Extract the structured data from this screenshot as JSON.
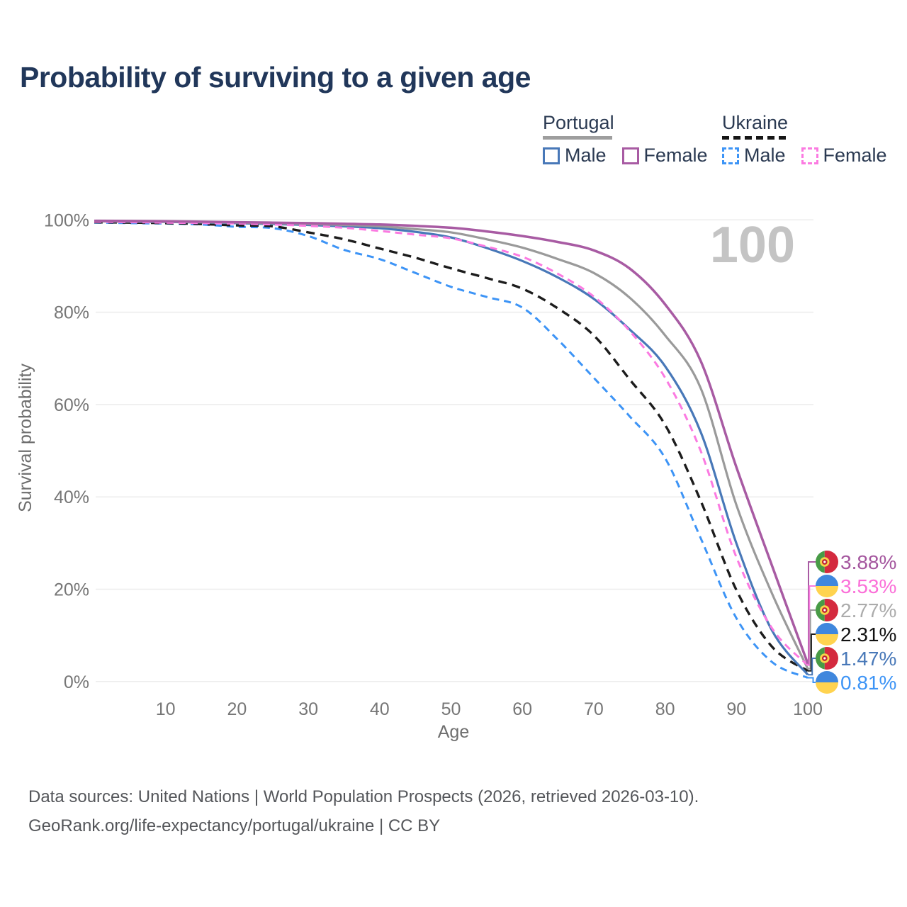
{
  "title": "Probability of surviving to a given age",
  "watermark": "100",
  "legend": {
    "groups": [
      {
        "name": "Portugal",
        "underline_style": "border-top:5px solid #9e9e9e;width:98px",
        "items": [
          {
            "label": "Male",
            "swatch_style": "border:3px solid #4878b8"
          },
          {
            "label": "Female",
            "swatch_style": "border:3px solid #a85ba3"
          }
        ]
      },
      {
        "name": "Ukraine",
        "underline_style": "border-top:5px dashed #161616;width:90px",
        "items": [
          {
            "label": "Male",
            "swatch_style": "border:3px dashed #3d94f6"
          },
          {
            "label": "Female",
            "swatch_style": "border:3px dashed #fb7ae1"
          }
        ]
      }
    ]
  },
  "chart_data": {
    "type": "line",
    "title": "Probability of surviving to a given age",
    "xlabel": "Age",
    "ylabel": "Survival probability",
    "xlim": [
      0,
      100
    ],
    "ylim": [
      0,
      100
    ],
    "grid": "horizontal",
    "x_ticks": [
      10,
      20,
      30,
      40,
      50,
      60,
      70,
      80,
      90,
      100
    ],
    "y_ticks": [
      0,
      20,
      40,
      60,
      80,
      100
    ],
    "y_tick_suffix": "%",
    "series": [
      {
        "name": "Portugal Female",
        "country": "Portugal",
        "sex": "Female",
        "color": "#a85ba3",
        "dashed": false,
        "width": 3.5,
        "z": 6,
        "flag": "pt",
        "end_label": "3.88%",
        "label_color": "#a4569e",
        "points": [
          [
            0,
            99.8
          ],
          [
            5,
            99.75
          ],
          [
            10,
            99.7
          ],
          [
            15,
            99.6
          ],
          [
            20,
            99.5
          ],
          [
            25,
            99.4
          ],
          [
            30,
            99.3
          ],
          [
            35,
            99.15
          ],
          [
            40,
            99.0
          ],
          [
            45,
            98.7
          ],
          [
            50,
            98.3
          ],
          [
            55,
            97.5
          ],
          [
            60,
            96.5
          ],
          [
            65,
            95.2
          ],
          [
            70,
            93.4
          ],
          [
            75,
            89.5
          ],
          [
            80,
            81.7
          ],
          [
            85,
            69.4
          ],
          [
            90,
            46.4
          ],
          [
            95,
            25.0
          ],
          [
            100,
            3.88
          ]
        ]
      },
      {
        "name": "Ukraine Female",
        "country": "Ukraine",
        "sex": "Female",
        "color": "#fb7ae1",
        "dashed": true,
        "dash": "10 7",
        "width": 3,
        "z": 5,
        "flag": "ua",
        "end_label": "3.53%",
        "label_color": "#fb6fd8",
        "points": [
          [
            0,
            99.6
          ],
          [
            5,
            99.5
          ],
          [
            10,
            99.4
          ],
          [
            15,
            99.3
          ],
          [
            20,
            99.2
          ],
          [
            25,
            99.0
          ],
          [
            30,
            98.7
          ],
          [
            35,
            98.3
          ],
          [
            40,
            97.6
          ],
          [
            45,
            96.8
          ],
          [
            50,
            96.0
          ],
          [
            55,
            94.2
          ],
          [
            60,
            92.0
          ],
          [
            65,
            88.3
          ],
          [
            70,
            83.4
          ],
          [
            75,
            76.0
          ],
          [
            80,
            65.8
          ],
          [
            85,
            49.9
          ],
          [
            90,
            26.9
          ],
          [
            95,
            11.5
          ],
          [
            100,
            3.53
          ]
        ]
      },
      {
        "name": "Portugal",
        "country": "Portugal",
        "sex": "Both",
        "color": "#9a9a9a",
        "dashed": false,
        "width": 3.2,
        "z": 4,
        "flag": "pt",
        "end_label": "2.77%",
        "label_color": "#ababab",
        "points": [
          [
            0,
            99.7
          ],
          [
            5,
            99.65
          ],
          [
            10,
            99.6
          ],
          [
            15,
            99.5
          ],
          [
            20,
            99.4
          ],
          [
            25,
            99.25
          ],
          [
            30,
            99.1
          ],
          [
            35,
            98.9
          ],
          [
            40,
            98.6
          ],
          [
            45,
            98.0
          ],
          [
            50,
            97.3
          ],
          [
            55,
            95.8
          ],
          [
            60,
            94.0
          ],
          [
            65,
            91.5
          ],
          [
            70,
            88.5
          ],
          [
            75,
            83.2
          ],
          [
            80,
            75.0
          ],
          [
            85,
            63.5
          ],
          [
            90,
            38.2
          ],
          [
            95,
            19.0
          ],
          [
            100,
            2.77
          ]
        ]
      },
      {
        "name": "Ukraine",
        "country": "Ukraine",
        "sex": "Both",
        "color": "#1c1c1c",
        "dashed": true,
        "dash": "12 8",
        "width": 3.4,
        "z": 2,
        "flag": "ua",
        "end_label": "2.31%",
        "label_color": "#111111",
        "points": [
          [
            0,
            99.5
          ],
          [
            5,
            99.4
          ],
          [
            10,
            99.3
          ],
          [
            15,
            99.1
          ],
          [
            20,
            98.8
          ],
          [
            25,
            98.6
          ],
          [
            30,
            97.3
          ],
          [
            35,
            95.8
          ],
          [
            40,
            93.8
          ],
          [
            45,
            91.8
          ],
          [
            50,
            89.5
          ],
          [
            55,
            87.4
          ],
          [
            60,
            85.1
          ],
          [
            65,
            80.8
          ],
          [
            70,
            75.0
          ],
          [
            75,
            65.5
          ],
          [
            80,
            55.6
          ],
          [
            85,
            39.1
          ],
          [
            90,
            19.8
          ],
          [
            95,
            7.5
          ],
          [
            100,
            2.31
          ]
        ]
      },
      {
        "name": "Portugal Male",
        "country": "Portugal",
        "sex": "Male",
        "color": "#4878b8",
        "dashed": false,
        "width": 3.2,
        "z": 3,
        "flag": "pt",
        "end_label": "1.47%",
        "label_color": "#4878b8",
        "points": [
          [
            0,
            99.7
          ],
          [
            5,
            99.6
          ],
          [
            10,
            99.55
          ],
          [
            15,
            99.45
          ],
          [
            20,
            99.3
          ],
          [
            25,
            99.1
          ],
          [
            30,
            98.9
          ],
          [
            35,
            98.6
          ],
          [
            40,
            98.2
          ],
          [
            45,
            97.4
          ],
          [
            50,
            96.2
          ],
          [
            55,
            93.9
          ],
          [
            60,
            91.1
          ],
          [
            65,
            87.5
          ],
          [
            70,
            82.9
          ],
          [
            75,
            76.3
          ],
          [
            80,
            68.3
          ],
          [
            85,
            54.0
          ],
          [
            90,
            29.9
          ],
          [
            95,
            11.0
          ],
          [
            100,
            1.47
          ]
        ]
      },
      {
        "name": "Ukraine Male",
        "country": "Ukraine",
        "sex": "Male",
        "color": "#3d94f6",
        "dashed": true,
        "dash": "10 7",
        "width": 3,
        "z": 1,
        "flag": "ua",
        "end_label": "0.81%",
        "label_color": "#3d94f6",
        "points": [
          [
            0,
            99.4
          ],
          [
            5,
            99.3
          ],
          [
            10,
            99.2
          ],
          [
            15,
            99.0
          ],
          [
            20,
            98.5
          ],
          [
            25,
            98.2
          ],
          [
            30,
            96.5
          ],
          [
            35,
            93.5
          ],
          [
            40,
            91.5
          ],
          [
            45,
            88.5
          ],
          [
            50,
            85.5
          ],
          [
            55,
            83.3
          ],
          [
            60,
            81.0
          ],
          [
            65,
            74.0
          ],
          [
            70,
            65.8
          ],
          [
            75,
            57.5
          ],
          [
            80,
            48.4
          ],
          [
            85,
            31.0
          ],
          [
            90,
            13.7
          ],
          [
            95,
            4.2
          ],
          [
            100,
            0.81
          ]
        ]
      }
    ],
    "flag_colors": {
      "pt": {
        "green": "#489b46",
        "red": "#d42a3e",
        "emblem_yellow": "#f7d24a",
        "emblem_red": "#c02030",
        "emblem_white": "#ffffff"
      },
      "ua": {
        "blue": "#3f87dd",
        "yellow": "#ffd34f"
      }
    }
  },
  "footer": {
    "line1": "Data sources: United Nations | World Population Prospects (2026, retrieved 2026-03-10).",
    "line2": "GeoRank.org/life-expectancy/portugal/ukraine | CC BY"
  }
}
